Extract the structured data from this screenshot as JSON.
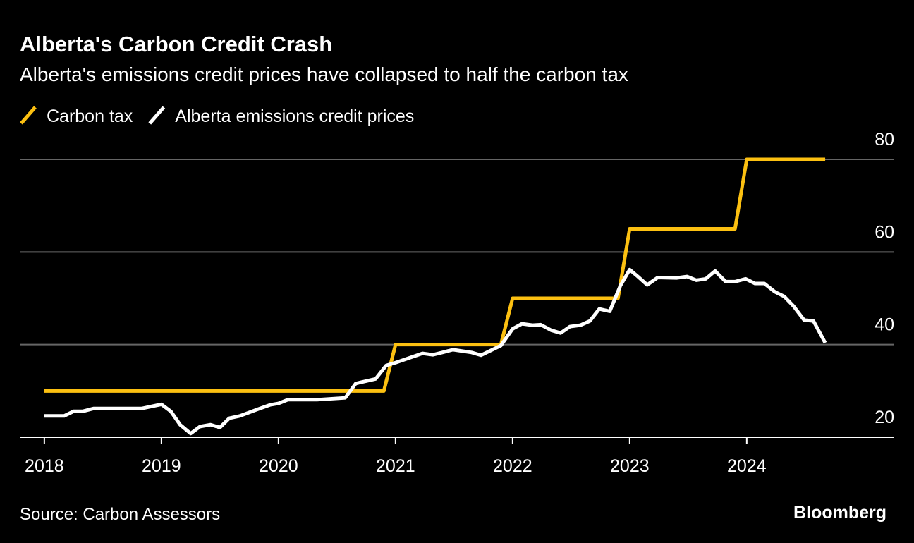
{
  "chart_data": {
    "type": "line",
    "title": "Alberta's Carbon Credit Crash",
    "subtitle": "Alberta's emissions credit prices have collapsed to half the carbon tax",
    "source": "Source: Carbon Assessors",
    "brand": "Bloomberg",
    "series": [
      {
        "name": "Carbon tax",
        "color": "#fcc011",
        "x": [
          2018,
          2020.9,
          2021,
          2021.9,
          2022,
          2022.9,
          2023,
          2023.9,
          2024,
          2024.67
        ],
        "values": [
          30,
          30,
          40,
          40,
          50,
          50,
          65,
          65,
          80,
          80
        ]
      },
      {
        "name": "Alberta emissions credit prices",
        "color": "#ffffff",
        "x": [
          2018,
          2018.17,
          2018.25,
          2018.33,
          2018.42,
          2018.83,
          2019.0,
          2019.08,
          2019.16,
          2019.25,
          2019.33,
          2019.42,
          2019.5,
          2019.58,
          2019.67,
          2019.83,
          2019.93,
          2020.0,
          2020.08,
          2020.33,
          2020.57,
          2020.66,
          2020.83,
          2020.92,
          2021.0,
          2021.23,
          2021.32,
          2021.4,
          2021.49,
          2021.65,
          2021.73,
          2021.9,
          2022.0,
          2022.08,
          2022.17,
          2022.24,
          2022.33,
          2022.41,
          2022.49,
          2022.58,
          2022.66,
          2022.74,
          2022.83,
          2022.92,
          2023.0,
          2023.07,
          2023.15,
          2023.24,
          2023.4,
          2023.49,
          2023.57,
          2023.65,
          2023.73,
          2023.82,
          2023.9,
          2023.99,
          2024.07,
          2024.15,
          2024.24,
          2024.32,
          2024.4,
          2024.49,
          2024.57,
          2024.67
        ],
        "values": [
          24.6,
          24.6,
          25.6,
          25.6,
          26.2,
          26.2,
          27.1,
          25.6,
          22.7,
          20.8,
          22.3,
          22.7,
          22.1,
          24.1,
          24.6,
          26.1,
          27.0,
          27.3,
          28.1,
          28.1,
          28.5,
          31.6,
          32.6,
          35.5,
          36.1,
          38.1,
          37.8,
          38.3,
          38.9,
          38.3,
          37.7,
          39.8,
          43.4,
          44.5,
          44.2,
          44.3,
          43.1,
          42.5,
          43.9,
          44.2,
          45.1,
          47.7,
          47.2,
          52.7,
          56.2,
          54.7,
          52.9,
          54.5,
          54.4,
          54.7,
          53.9,
          54.2,
          55.9,
          53.6,
          53.6,
          54.2,
          53.2,
          53.2,
          51.4,
          50.4,
          48.3,
          45.3,
          45.1,
          40.4
        ]
      }
    ],
    "xlim": [
      2017.79,
      2025.26
    ],
    "xticks": [
      2018,
      2019,
      2020,
      2021,
      2022,
      2023,
      2024
    ],
    "ylim": [
      20,
      80
    ],
    "yticks": [
      20,
      40,
      60,
      80
    ],
    "grid": true
  }
}
